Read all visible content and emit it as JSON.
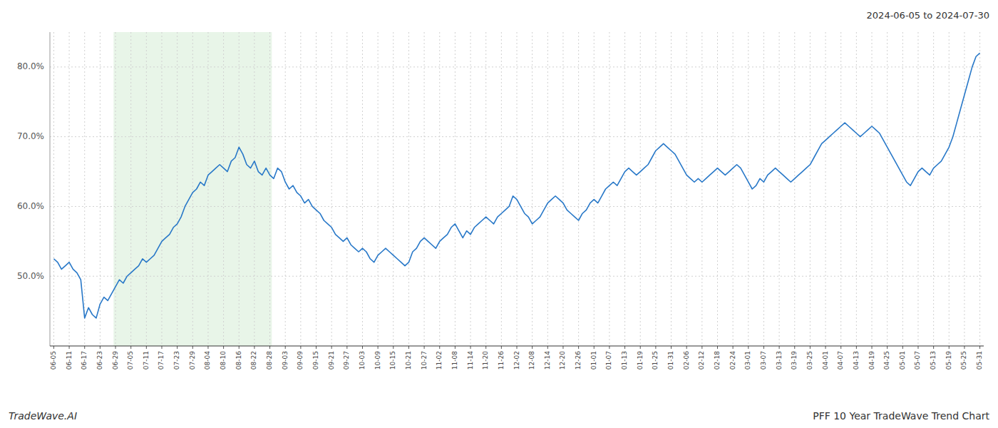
{
  "chart_data": {
    "type": "line",
    "title": "PFF 10 Year TradeWave Trend Chart",
    "subtitle": "2024-06-05 to 2024-07-30",
    "annotations": [
      "TradeWave.AI"
    ],
    "color": "#2878c8",
    "grid": true,
    "ylim": [
      40.0,
      85.0
    ],
    "yticks": [
      {
        "value": 50.0,
        "label": "50.0%"
      },
      {
        "value": 60.0,
        "label": "60.0%"
      },
      {
        "value": 70.0,
        "label": "70.0%"
      },
      {
        "value": 80.0,
        "label": "80.0%"
      }
    ],
    "shaded_range": {
      "from": "06-29",
      "to": "08-28",
      "color": "#d6ecd6"
    },
    "categories": [
      "06-05",
      null,
      null,
      null,
      "06-11",
      null,
      null,
      null,
      "06-17",
      null,
      null,
      null,
      "06-23",
      null,
      null,
      null,
      "06-29",
      null,
      null,
      null,
      "07-05",
      null,
      null,
      null,
      "07-11",
      null,
      null,
      null,
      "07-17",
      null,
      null,
      null,
      "07-23",
      null,
      null,
      null,
      "07-29",
      null,
      null,
      null,
      "08-04",
      null,
      null,
      null,
      "08-10",
      null,
      null,
      null,
      "08-16",
      null,
      null,
      null,
      "08-22",
      null,
      null,
      null,
      "08-28",
      null,
      null,
      null,
      "09-03",
      null,
      null,
      null,
      "09-09",
      null,
      null,
      null,
      "09-15",
      null,
      null,
      null,
      "09-21",
      null,
      null,
      null,
      "09-27",
      null,
      null,
      null,
      "10-03",
      null,
      null,
      null,
      "10-09",
      null,
      null,
      null,
      "10-15",
      null,
      null,
      null,
      "10-21",
      null,
      null,
      null,
      "10-27",
      null,
      null,
      null,
      "11-02",
      null,
      null,
      null,
      "11-08",
      null,
      null,
      null,
      "11-14",
      null,
      null,
      null,
      "11-20",
      null,
      null,
      null,
      "11-26",
      null,
      null,
      null,
      "12-02",
      null,
      null,
      null,
      "12-08",
      null,
      null,
      null,
      "12-14",
      null,
      null,
      null,
      "12-20",
      null,
      null,
      null,
      "12-26",
      null,
      null,
      null,
      "01-01",
      null,
      null,
      null,
      "01-07",
      null,
      null,
      null,
      "01-13",
      null,
      null,
      null,
      "01-19",
      null,
      null,
      null,
      "01-25",
      null,
      null,
      null,
      "01-31",
      null,
      null,
      null,
      "02-06",
      null,
      null,
      null,
      "02-12",
      null,
      null,
      null,
      "02-18",
      null,
      null,
      null,
      "02-24",
      null,
      null,
      null,
      "03-01",
      null,
      null,
      null,
      "03-07",
      null,
      null,
      null,
      "03-13",
      null,
      null,
      null,
      "03-19",
      null,
      null,
      null,
      "03-25",
      null,
      null,
      null,
      "04-01",
      null,
      null,
      null,
      "04-07",
      null,
      null,
      null,
      "04-13",
      null,
      null,
      null,
      "04-19",
      null,
      null,
      null,
      "04-25",
      null,
      null,
      null,
      "05-01",
      null,
      null,
      null,
      "05-07",
      null,
      null,
      null,
      "05-13",
      null,
      null,
      null,
      "05-19",
      null,
      null,
      null,
      "05-25",
      null,
      null,
      null,
      "05-31"
    ],
    "values": [
      52.5,
      52.0,
      51.0,
      51.5,
      52.0,
      51.0,
      50.5,
      49.5,
      44.0,
      45.5,
      44.5,
      44.0,
      46.0,
      47.0,
      46.5,
      47.5,
      48.5,
      49.5,
      49.0,
      50.0,
      50.5,
      51.0,
      51.5,
      52.5,
      52.0,
      52.5,
      53.0,
      54.0,
      55.0,
      55.5,
      56.0,
      57.0,
      57.5,
      58.5,
      60.0,
      61.0,
      62.0,
      62.5,
      63.5,
      63.0,
      64.5,
      65.0,
      65.5,
      66.0,
      65.5,
      65.0,
      66.5,
      67.0,
      68.5,
      67.5,
      66.0,
      65.5,
      66.5,
      65.0,
      64.5,
      65.5,
      64.5,
      64.0,
      65.5,
      65.0,
      63.5,
      62.5,
      63.0,
      62.0,
      61.5,
      60.5,
      61.0,
      60.0,
      59.5,
      59.0,
      58.0,
      57.5,
      57.0,
      56.0,
      55.5,
      55.0,
      55.5,
      54.5,
      54.0,
      53.5,
      54.0,
      53.5,
      52.5,
      52.0,
      53.0,
      53.5,
      54.0,
      53.5,
      53.0,
      52.5,
      52.0,
      51.5,
      52.0,
      53.5,
      54.0,
      55.0,
      55.5,
      55.0,
      54.5,
      54.0,
      55.0,
      55.5,
      56.0,
      57.0,
      57.5,
      56.5,
      55.5,
      56.5,
      56.0,
      57.0,
      57.5,
      58.0,
      58.5,
      58.0,
      57.5,
      58.5,
      59.0,
      59.5,
      60.0,
      61.5,
      61.0,
      60.0,
      59.0,
      58.5,
      57.5,
      58.0,
      58.5,
      59.5,
      60.5,
      61.0,
      61.5,
      61.0,
      60.5,
      59.5,
      59.0,
      58.5,
      58.0,
      59.0,
      59.5,
      60.5,
      61.0,
      60.5,
      61.5,
      62.5,
      63.0,
      63.5,
      63.0,
      64.0,
      65.0,
      65.5,
      65.0,
      64.5,
      65.0,
      65.5,
      66.0,
      67.0,
      68.0,
      68.5,
      69.0,
      68.5,
      68.0,
      67.5,
      66.5,
      65.5,
      64.5,
      64.0,
      63.5,
      64.0,
      63.5,
      64.0,
      64.5,
      65.0,
      65.5,
      65.0,
      64.5,
      65.0,
      65.5,
      66.0,
      65.5,
      64.5,
      63.5,
      62.5,
      63.0,
      64.0,
      63.5,
      64.5,
      65.0,
      65.5,
      65.0,
      64.5,
      64.0,
      63.5,
      64.0,
      64.5,
      65.0,
      65.5,
      66.0,
      67.0,
      68.0,
      69.0,
      69.5,
      70.0,
      70.5,
      71.0,
      71.5,
      72.0,
      71.5,
      71.0,
      70.5,
      70.0,
      70.5,
      71.0,
      71.5,
      71.0,
      70.5,
      69.5,
      68.5,
      67.5,
      66.5,
      65.5,
      64.5,
      63.5,
      63.0,
      64.0,
      65.0,
      65.5,
      65.0,
      64.5,
      65.5,
      66.0,
      66.5,
      67.5,
      68.5,
      70.0,
      72.0,
      74.0,
      76.0,
      78.0,
      80.0,
      81.5,
      82.0
    ]
  }
}
